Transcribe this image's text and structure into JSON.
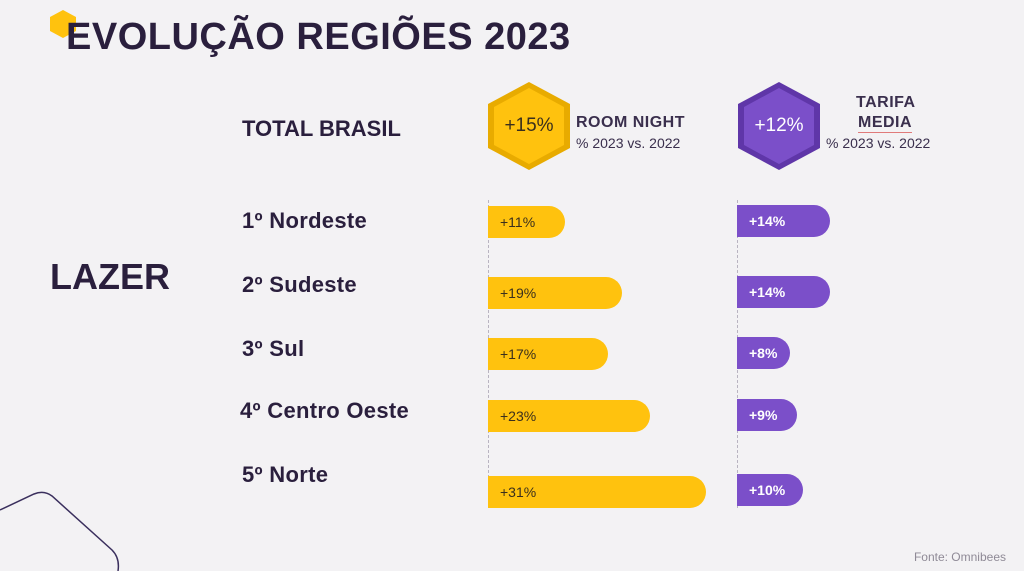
{
  "title": "EVOLUÇÃO REGIÕES 2023",
  "total_label": "TOTAL BRASIL",
  "segment_label": "LAZER",
  "source": "Fonte: Omnibees",
  "colors": {
    "accent_yellow": "#ffc20e",
    "accent_purple": "#7b4fc9",
    "text_dark": "#2a1f3d"
  },
  "metrics": [
    {
      "total": "+15%",
      "title": "ROOM NIGHT",
      "title_line2": "",
      "subtitle": "% 2023 vs. 2022"
    },
    {
      "total": "+12%",
      "title": "TARIFA",
      "title_line2": "MEDIA",
      "subtitle": "% 2023 vs. 2022"
    }
  ],
  "chart_data": {
    "type": "bar",
    "categories": [
      "1º Nordeste",
      "2º Sudeste",
      "3º Sul",
      "4º Centro Oeste",
      "5º Norte"
    ],
    "series": [
      {
        "name": "ROOM NIGHT",
        "values": [
          11,
          19,
          17,
          23,
          31
        ],
        "labels": [
          "+11%",
          "+19%",
          "+17%",
          "+23%",
          "+31%"
        ]
      },
      {
        "name": "TARIFA MEDIA",
        "values": [
          14,
          14,
          8,
          9,
          10
        ],
        "labels": [
          "+14%",
          "+14%",
          "+8%",
          "+9%",
          "+10%"
        ]
      }
    ],
    "title": "EVOLUÇÃO REGIÕES 2023",
    "orientation": "horizontal",
    "grid": false
  }
}
